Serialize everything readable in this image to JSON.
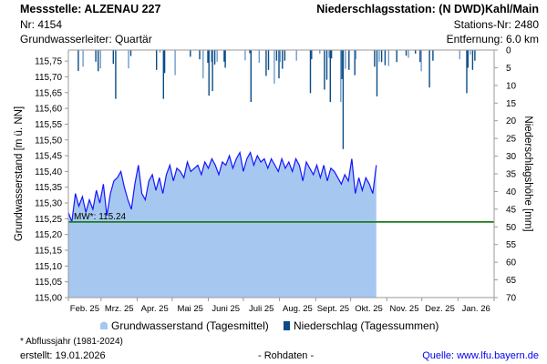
{
  "header": {
    "station": "Messstelle: ALZENAU 227",
    "nr": "Nr: 4154",
    "aquifer": "Grundwasserleiter: Quartär",
    "precip_station": "Niederschlagsstation: (N DWD)Kahl/Main",
    "station_nr": "Stations-Nr: 2480",
    "distance": "Entfernung: 6.0 km"
  },
  "footer": {
    "note": "* Abflussjahr (1981-2024)",
    "created": "erstellt:  19.01.2026",
    "rawdata": "- Rohdaten -",
    "source": "Quelle: www.lfu.bayern.de"
  },
  "colors": {
    "fill": "#a6c8f0",
    "line": "#1515ff",
    "mean": "#1f7a1f",
    "precip": "#0b4c86",
    "precip_light": "#6f9ccb"
  },
  "chart_data": {
    "type": "area",
    "ylabel": "Grundwasserstand [m ü. NN]",
    "y2label": "Niederschlagshöhe [mm]",
    "ylim": [
      115.0,
      115.785
    ],
    "y2lim": [
      0,
      70
    ],
    "yticks": [
      "115,00",
      "115,05",
      "115,10",
      "115,15",
      "115,20",
      "115,25",
      "115,30",
      "115,35",
      "115,40",
      "115,45",
      "115,50",
      "115,55",
      "115,60",
      "115,65",
      "115,70",
      "115,75"
    ],
    "y2ticks": [
      "0",
      "5",
      "10",
      "15",
      "20",
      "25",
      "30",
      "35",
      "40",
      "45",
      "50",
      "55",
      "60",
      "65",
      "70"
    ],
    "xstart": "2025-02-01",
    "xdays": 365,
    "xticks": [
      "Feb. 25",
      "Mrz. 25",
      "Apr. 25",
      "Mai 25",
      "Juni 25",
      "Juli 25",
      "Aug. 25",
      "Sept. 25",
      "Okt. 25",
      "Nov. 25",
      "Dez. 25",
      "Jan. 26"
    ],
    "mean": {
      "label": "MW*: 115.24",
      "value": 115.24
    },
    "legend": [
      "Grundwasserstand (Tagesmittel)",
      "Niederschlag (Tagessummen)"
    ],
    "groundwater": {
      "name": "Grundwasserstand (Tagesmittel)",
      "step_days": 3,
      "values": [
        115.27,
        115.24,
        115.33,
        115.29,
        115.32,
        115.27,
        115.31,
        115.28,
        115.34,
        115.3,
        115.36,
        115.26,
        115.33,
        115.37,
        115.38,
        115.4,
        115.35,
        115.31,
        115.28,
        115.36,
        115.42,
        115.33,
        115.31,
        115.37,
        115.39,
        115.34,
        115.38,
        115.33,
        115.39,
        115.42,
        115.37,
        115.41,
        115.4,
        115.38,
        115.43,
        115.4,
        115.41,
        115.42,
        115.39,
        115.43,
        115.41,
        115.44,
        115.42,
        115.39,
        115.43,
        115.42,
        115.45,
        115.41,
        115.44,
        115.46,
        115.4,
        115.44,
        115.46,
        115.42,
        115.45,
        115.43,
        115.44,
        115.41,
        115.44,
        115.42,
        115.4,
        115.44,
        115.41,
        115.43,
        115.4,
        115.44,
        115.42,
        115.37,
        115.43,
        115.41,
        115.39,
        115.42,
        115.38,
        115.42,
        115.37,
        115.41,
        115.4,
        115.38,
        115.36,
        115.39,
        115.37,
        115.44,
        115.33,
        115.38,
        115.34,
        115.38,
        115.36,
        115.33,
        115.42
      ]
    },
    "precipitation": {
      "name": "Niederschlag (Tagessummen)",
      "points": [
        [
          8,
          5.9
        ],
        [
          12,
          4.7
        ],
        [
          23,
          3.3
        ],
        [
          25,
          6.0
        ],
        [
          27,
          5.2
        ],
        [
          38,
          3.9
        ],
        [
          40,
          13.8
        ],
        [
          51,
          5.2
        ],
        [
          53,
          1.7
        ],
        [
          75,
          5.6
        ],
        [
          78,
          0.7
        ],
        [
          81,
          13.8
        ],
        [
          82,
          6.5
        ],
        [
          91,
          7.1
        ],
        [
          104,
          1.9
        ],
        [
          112,
          2.6
        ],
        [
          115,
          8.0
        ],
        [
          119,
          3.6
        ],
        [
          120,
          12.9
        ],
        [
          122,
          3.4
        ],
        [
          123,
          11.6
        ],
        [
          125,
          4.1
        ],
        [
          127,
          3.3
        ],
        [
          133,
          3.3
        ],
        [
          134,
          5.0
        ],
        [
          151,
          2.9
        ],
        [
          155,
          0.9
        ],
        [
          156,
          14.7
        ],
        [
          163,
          3.6
        ],
        [
          169,
          7.3
        ],
        [
          171,
          5.6
        ],
        [
          176,
          9.5
        ],
        [
          178,
          3.0
        ],
        [
          180,
          8.0
        ],
        [
          181,
          3.4
        ],
        [
          183,
          5.3
        ],
        [
          185,
          3.0
        ],
        [
          195,
          3.0
        ],
        [
          207,
          12.2
        ],
        [
          208,
          2.6
        ],
        [
          215,
          1.0
        ],
        [
          219,
          11.2
        ],
        [
          221,
          8.4
        ],
        [
          223,
          2.2
        ],
        [
          224,
          14.7
        ],
        [
          225,
          2.4
        ],
        [
          233,
          14.7
        ],
        [
          234,
          8.2
        ],
        [
          235,
          28.0
        ],
        [
          237,
          5.3
        ],
        [
          240,
          5.6
        ],
        [
          245,
          7.1
        ],
        [
          246,
          2.6
        ],
        [
          262,
          4.7
        ],
        [
          264,
          13.1
        ],
        [
          266,
          3.3
        ],
        [
          268,
          3.4
        ],
        [
          271,
          4.3
        ],
        [
          274,
          4.5
        ],
        [
          281,
          3.4
        ],
        [
          289,
          1.6
        ],
        [
          291,
          2.2
        ],
        [
          297,
          1.0
        ],
        [
          301,
          3.4
        ],
        [
          302,
          6.0
        ],
        [
          309,
          10.6
        ],
        [
          312,
          3.0
        ],
        [
          335,
          2.6
        ],
        [
          341,
          12.2
        ],
        [
          342,
          5.0
        ],
        [
          344,
          1.3
        ],
        [
          346,
          5.6
        ],
        [
          348,
          3.0
        ]
      ]
    }
  }
}
